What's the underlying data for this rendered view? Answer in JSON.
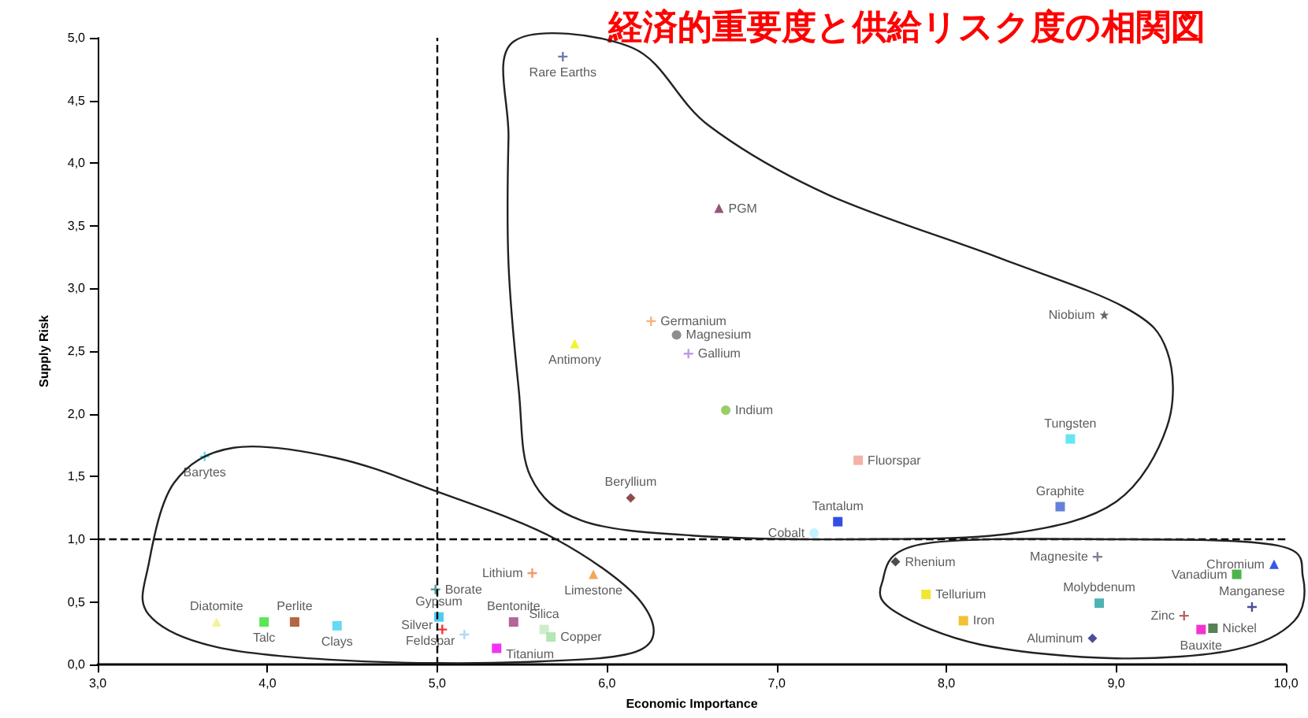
{
  "chart_data": {
    "type": "scatter",
    "title": "経済的重要度と供給リスク度の相関図",
    "xlabel": "Economic Importance",
    "ylabel": "Supply Risk",
    "xlim": [
      3,
      10
    ],
    "ylim": [
      0,
      5
    ],
    "xticks": [
      {
        "value": 3,
        "label": "3,0"
      },
      {
        "value": 4,
        "label": "4,0"
      },
      {
        "value": 5,
        "label": "5,0"
      },
      {
        "value": 6,
        "label": "6,0"
      },
      {
        "value": 7,
        "label": "7,0"
      },
      {
        "value": 8,
        "label": "8,0"
      },
      {
        "value": 9,
        "label": "9,0"
      },
      {
        "value": 10,
        "label": "10,0"
      }
    ],
    "yticks": [
      {
        "value": 0,
        "label": "0,0"
      },
      {
        "value": 0.5,
        "label": "0,5"
      },
      {
        "value": 1,
        "label": "1,0"
      },
      {
        "value": 1.5,
        "label": "1,5"
      },
      {
        "value": 2,
        "label": "2,0"
      },
      {
        "value": 2.5,
        "label": "2,5"
      },
      {
        "value": 3,
        "label": "3,0"
      },
      {
        "value": 3.5,
        "label": "3,5"
      },
      {
        "value": 4,
        "label": "4,0"
      },
      {
        "value": 4.5,
        "label": "4,5"
      },
      {
        "value": 5,
        "label": "5,0"
      }
    ],
    "grid": false,
    "legend": false,
    "ref_lines": [
      {
        "axis": "x",
        "value": 5,
        "label": null,
        "color": "#000000",
        "line_style": "dashed"
      },
      {
        "axis": "y",
        "value": 1,
        "label": null,
        "color": "#000000",
        "line_style": "dashed"
      }
    ],
    "series": [
      {
        "name": "Rare Earths",
        "color": "#4a5a9a",
        "marker": "cross",
        "x": [
          5.74
        ],
        "values": [
          4.85
        ]
      },
      {
        "name": "PGM",
        "color": "#7a2a5a",
        "marker": "triangle",
        "x": [
          6.66
        ],
        "values": [
          3.64
        ]
      },
      {
        "name": "Germanium",
        "color": "#f5a060",
        "marker": "cross",
        "x": [
          6.26
        ],
        "values": [
          2.74
        ]
      },
      {
        "name": "Magnesium",
        "color": "#707070",
        "marker": "circle",
        "x": [
          6.41
        ],
        "values": [
          2.63
        ]
      },
      {
        "name": "Gallium",
        "color": "#b080e0",
        "marker": "cross",
        "x": [
          6.48
        ],
        "values": [
          2.48
        ]
      },
      {
        "name": "Antimony",
        "color": "#f0f000",
        "marker": "triangle",
        "x": [
          5.81
        ],
        "values": [
          2.56
        ]
      },
      {
        "name": "Indium",
        "color": "#80c040",
        "marker": "circle",
        "x": [
          6.7
        ],
        "values": [
          2.03
        ]
      },
      {
        "name": "Fluorspar",
        "color": "#f0a090",
        "marker": "square",
        "x": [
          7.48
        ],
        "values": [
          1.63
        ]
      },
      {
        "name": "Niobium",
        "color": "#404040",
        "marker": "star",
        "x": [
          8.93
        ],
        "values": [
          2.79
        ]
      },
      {
        "name": "Tungsten",
        "color": "#40e0f0",
        "marker": "square",
        "x": [
          8.73
        ],
        "values": [
          1.8
        ]
      },
      {
        "name": "Graphite",
        "color": "#4060d0",
        "marker": "square",
        "x": [
          8.67
        ],
        "values": [
          1.26
        ]
      },
      {
        "name": "Tantalum",
        "color": "#0020e0",
        "marker": "square",
        "x": [
          7.36
        ],
        "values": [
          1.14
        ]
      },
      {
        "name": "Cobalt",
        "color": "#b0f0ff",
        "marker": "circle",
        "x": [
          7.22
        ],
        "values": [
          1.05
        ]
      },
      {
        "name": "Beryllium",
        "color": "#702020",
        "marker": "diamond",
        "x": [
          6.14
        ],
        "values": [
          1.33
        ]
      },
      {
        "name": "Barytes",
        "color": "#40d0f0",
        "marker": "cross",
        "x": [
          3.63
        ],
        "values": [
          1.66
        ]
      },
      {
        "name": "Lithium",
        "color": "#f08040",
        "marker": "cross",
        "x": [
          5.56
        ],
        "values": [
          0.73
        ]
      },
      {
        "name": "Limestone",
        "color": "#f09030",
        "marker": "triangle",
        "x": [
          5.92
        ],
        "values": [
          0.72
        ]
      },
      {
        "name": "Borate",
        "color": "#208080",
        "marker": "cross",
        "x": [
          4.99
        ],
        "values": [
          0.6
        ]
      },
      {
        "name": "Gypsum",
        "color": "#20c0f0",
        "marker": "square",
        "x": [
          5.01
        ],
        "values": [
          0.38
        ]
      },
      {
        "name": "Bentonite",
        "color": "#a04080",
        "marker": "square",
        "x": [
          5.45
        ],
        "values": [
          0.34
        ]
      },
      {
        "name": "Silver",
        "color": "#f00000",
        "marker": "cross",
        "x": [
          5.03
        ],
        "values": [
          0.28
        ]
      },
      {
        "name": "Feldspar",
        "color": "#a0d0f0",
        "marker": "cross",
        "x": [
          5.16
        ],
        "values": [
          0.24
        ]
      },
      {
        "name": "Titanium",
        "color": "#f000f0",
        "marker": "square",
        "x": [
          5.35
        ],
        "values": [
          0.13
        ]
      },
      {
        "name": "Silica",
        "color": "#c0e8c0",
        "marker": "square",
        "x": [
          5.63
        ],
        "values": [
          0.28
        ]
      },
      {
        "name": "Copper",
        "color": "#a0e0a0",
        "marker": "square",
        "x": [
          5.67
        ],
        "values": [
          0.22
        ]
      },
      {
        "name": "Diatomite",
        "color": "#f0f080",
        "marker": "triangle",
        "x": [
          3.7
        ],
        "values": [
          0.34
        ]
      },
      {
        "name": "Talc",
        "color": "#30e030",
        "marker": "square",
        "x": [
          3.98
        ],
        "values": [
          0.34
        ]
      },
      {
        "name": "Perlite",
        "color": "#a04010",
        "marker": "square",
        "x": [
          4.16
        ],
        "values": [
          0.34
        ]
      },
      {
        "name": "Clays",
        "color": "#40d0f0",
        "marker": "square",
        "x": [
          4.41
        ],
        "values": [
          0.31
        ]
      },
      {
        "name": "Rhenium",
        "color": "#202020",
        "marker": "diamond",
        "x": [
          7.7
        ],
        "values": [
          0.82
        ]
      },
      {
        "name": "Tellurium",
        "color": "#f0e000",
        "marker": "square",
        "x": [
          7.88
        ],
        "values": [
          0.56
        ]
      },
      {
        "name": "Iron",
        "color": "#f0b000",
        "marker": "square",
        "x": [
          8.1
        ],
        "values": [
          0.35
        ]
      },
      {
        "name": "Magnesite",
        "color": "#606080",
        "marker": "cross",
        "x": [
          8.89
        ],
        "values": [
          0.86
        ]
      },
      {
        "name": "Molybdenum",
        "color": "#20a0a0",
        "marker": "square",
        "x": [
          8.9
        ],
        "values": [
          0.49
        ]
      },
      {
        "name": "Aluminum",
        "color": "#202080",
        "marker": "diamond",
        "x": [
          8.86
        ],
        "values": [
          0.21
        ]
      },
      {
        "name": "Zinc",
        "color": "#a04040",
        "marker": "cross",
        "x": [
          9.4
        ],
        "values": [
          0.39
        ]
      },
      {
        "name": "Bauxite",
        "color": "#f000c0",
        "marker": "square",
        "x": [
          9.5
        ],
        "values": [
          0.28
        ]
      },
      {
        "name": "Nickel",
        "color": "#306030",
        "marker": "square",
        "x": [
          9.57
        ],
        "values": [
          0.29
        ]
      },
      {
        "name": "Chromium",
        "color": "#0030e0",
        "marker": "triangle",
        "x": [
          9.93
        ],
        "values": [
          0.8
        ]
      },
      {
        "name": "Vanadium",
        "color": "#20a020",
        "marker": "square",
        "x": [
          9.71
        ],
        "values": [
          0.72
        ]
      },
      {
        "name": "Manganese",
        "color": "#202080",
        "marker": "cross",
        "x": [
          9.8
        ],
        "values": [
          0.46
        ]
      }
    ]
  }
}
